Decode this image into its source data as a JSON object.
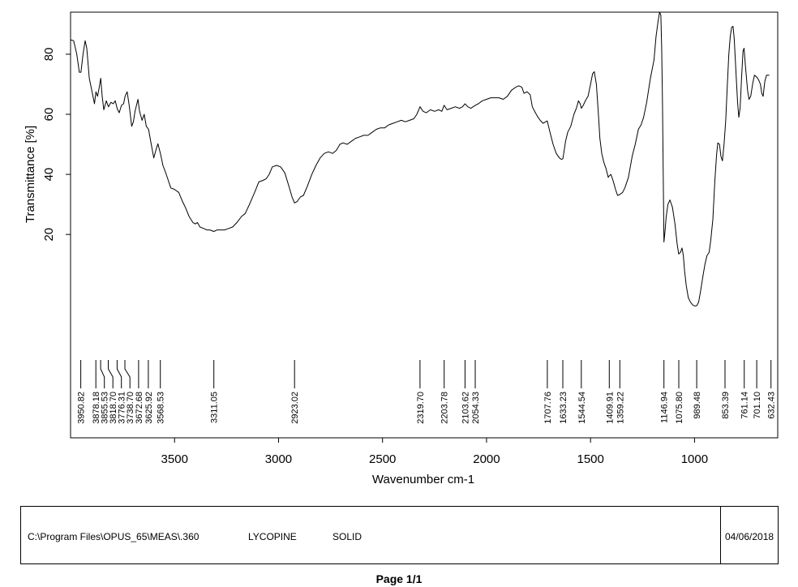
{
  "chart_data": {
    "type": "line",
    "xlabel": "Wavenumber cm-1",
    "ylabel": "Transmittance [%]",
    "xlim": [
      4000,
      600
    ],
    "ylim": [
      -18,
      94
    ],
    "x_ticks": [
      3500,
      3000,
      2500,
      2000,
      1500,
      1000
    ],
    "y_ticks": [
      20,
      40,
      60,
      80
    ],
    "grid": false,
    "series": [
      {
        "values": [
          [
            4000,
            84.8
          ],
          [
            3985,
            84.5
          ],
          [
            3970,
            80
          ],
          [
            3958,
            74
          ],
          [
            3950,
            74
          ],
          [
            3940,
            80
          ],
          [
            3930,
            84.5
          ],
          [
            3922,
            82
          ],
          [
            3910,
            72
          ],
          [
            3895,
            67
          ],
          [
            3885,
            63.5
          ],
          [
            3878,
            67.5
          ],
          [
            3870,
            66
          ],
          [
            3862,
            69
          ],
          [
            3855,
            72
          ],
          [
            3848,
            66
          ],
          [
            3840,
            61.5
          ],
          [
            3828,
            64.5
          ],
          [
            3818,
            62.5
          ],
          [
            3806,
            64
          ],
          [
            3795,
            63.5
          ],
          [
            3785,
            64.5
          ],
          [
            3776,
            62
          ],
          [
            3766,
            60.5
          ],
          [
            3755,
            63
          ],
          [
            3745,
            63.5
          ],
          [
            3738,
            66
          ],
          [
            3728,
            67.5
          ],
          [
            3718,
            63
          ],
          [
            3706,
            56
          ],
          [
            3698,
            57.5
          ],
          [
            3690,
            61
          ],
          [
            3676,
            65
          ],
          [
            3668,
            61
          ],
          [
            3656,
            58
          ],
          [
            3646,
            60
          ],
          [
            3636,
            56
          ],
          [
            3625,
            55
          ],
          [
            3612,
            50
          ],
          [
            3600,
            45.5
          ],
          [
            3590,
            48
          ],
          [
            3580,
            50.2
          ],
          [
            3568,
            47
          ],
          [
            3556,
            43
          ],
          [
            3545,
            41
          ],
          [
            3530,
            38
          ],
          [
            3518,
            35.5
          ],
          [
            3500,
            35
          ],
          [
            3480,
            34
          ],
          [
            3462,
            31
          ],
          [
            3448,
            29
          ],
          [
            3430,
            26
          ],
          [
            3412,
            24
          ],
          [
            3400,
            23.5
          ],
          [
            3390,
            24
          ],
          [
            3378,
            22.5
          ],
          [
            3360,
            22
          ],
          [
            3345,
            21.5
          ],
          [
            3330,
            21.5
          ],
          [
            3311,
            21
          ],
          [
            3295,
            21.5
          ],
          [
            3280,
            21.5
          ],
          [
            3260,
            21.5
          ],
          [
            3240,
            22
          ],
          [
            3220,
            22.5
          ],
          [
            3200,
            24
          ],
          [
            3178,
            26
          ],
          [
            3160,
            27
          ],
          [
            3140,
            30
          ],
          [
            3115,
            34
          ],
          [
            3095,
            37.5
          ],
          [
            3075,
            38
          ],
          [
            3060,
            38.5
          ],
          [
            3045,
            40
          ],
          [
            3030,
            42.5
          ],
          [
            3010,
            43
          ],
          [
            2990,
            42.5
          ],
          [
            2970,
            40.5
          ],
          [
            2950,
            36
          ],
          [
            2935,
            32.5
          ],
          [
            2923,
            30.5
          ],
          [
            2910,
            31
          ],
          [
            2895,
            32.5
          ],
          [
            2880,
            33
          ],
          [
            2862,
            36
          ],
          [
            2840,
            40
          ],
          [
            2820,
            43
          ],
          [
            2800,
            45.5
          ],
          [
            2780,
            47
          ],
          [
            2760,
            47.5
          ],
          [
            2740,
            47
          ],
          [
            2722,
            48
          ],
          [
            2705,
            50
          ],
          [
            2690,
            50.5
          ],
          [
            2670,
            50
          ],
          [
            2650,
            51
          ],
          [
            2630,
            52
          ],
          [
            2610,
            52.5
          ],
          [
            2590,
            53
          ],
          [
            2570,
            53
          ],
          [
            2550,
            54
          ],
          [
            2530,
            55
          ],
          [
            2510,
            55.5
          ],
          [
            2490,
            55.5
          ],
          [
            2470,
            56.5
          ],
          [
            2450,
            57
          ],
          [
            2430,
            57.5
          ],
          [
            2410,
            58
          ],
          [
            2390,
            57.5
          ],
          [
            2370,
            58
          ],
          [
            2350,
            58.5
          ],
          [
            2335,
            60
          ],
          [
            2320,
            62.5
          ],
          [
            2305,
            61
          ],
          [
            2290,
            60.5
          ],
          [
            2270,
            61.5
          ],
          [
            2250,
            61
          ],
          [
            2230,
            61.5
          ],
          [
            2215,
            61
          ],
          [
            2204,
            63
          ],
          [
            2190,
            61.5
          ],
          [
            2170,
            62
          ],
          [
            2150,
            62.5
          ],
          [
            2130,
            62
          ],
          [
            2115,
            62.5
          ],
          [
            2104,
            63.5
          ],
          [
            2090,
            62.5
          ],
          [
            2075,
            62
          ],
          [
            2065,
            62.5
          ],
          [
            2054,
            63
          ],
          [
            2040,
            63.5
          ],
          [
            2020,
            64.5
          ],
          [
            2000,
            65
          ],
          [
            1980,
            65.5
          ],
          [
            1960,
            65.5
          ],
          [
            1940,
            65.5
          ],
          [
            1920,
            65
          ],
          [
            1900,
            66
          ],
          [
            1880,
            68
          ],
          [
            1860,
            69
          ],
          [
            1845,
            69.5
          ],
          [
            1830,
            69
          ],
          [
            1820,
            67
          ],
          [
            1805,
            67.5
          ],
          [
            1790,
            66.5
          ],
          [
            1780,
            62.5
          ],
          [
            1765,
            60.5
          ],
          [
            1752,
            59
          ],
          [
            1742,
            58
          ],
          [
            1728,
            57
          ],
          [
            1715,
            57.5
          ],
          [
            1708,
            57.8
          ],
          [
            1695,
            54
          ],
          [
            1680,
            50
          ],
          [
            1665,
            47
          ],
          [
            1650,
            45.5
          ],
          [
            1640,
            45
          ],
          [
            1633,
            45.2
          ],
          [
            1620,
            51
          ],
          [
            1610,
            54
          ],
          [
            1595,
            56
          ],
          [
            1580,
            60
          ],
          [
            1568,
            62
          ],
          [
            1558,
            64.5
          ],
          [
            1550,
            63.5
          ],
          [
            1544,
            62
          ],
          [
            1535,
            63
          ],
          [
            1525,
            64.5
          ],
          [
            1512,
            66
          ],
          [
            1500,
            70
          ],
          [
            1490,
            73.5
          ],
          [
            1482,
            74.2
          ],
          [
            1472,
            70
          ],
          [
            1462,
            60
          ],
          [
            1455,
            52
          ],
          [
            1446,
            47
          ],
          [
            1436,
            44
          ],
          [
            1426,
            42
          ],
          [
            1415,
            39
          ],
          [
            1410,
            39.5
          ],
          [
            1402,
            40
          ],
          [
            1392,
            38
          ],
          [
            1380,
            35
          ],
          [
            1370,
            33
          ],
          [
            1359,
            33.3
          ],
          [
            1346,
            34
          ],
          [
            1335,
            35.5
          ],
          [
            1318,
            39
          ],
          [
            1300,
            46
          ],
          [
            1285,
            50
          ],
          [
            1270,
            55
          ],
          [
            1257,
            56.5
          ],
          [
            1245,
            59
          ],
          [
            1230,
            64
          ],
          [
            1212,
            72
          ],
          [
            1195,
            78
          ],
          [
            1185,
            86
          ],
          [
            1175,
            91
          ],
          [
            1168,
            94
          ],
          [
            1162,
            93
          ],
          [
            1158,
            82
          ],
          [
            1154,
            64
          ],
          [
            1150,
            38
          ],
          [
            1147,
            17.5
          ],
          [
            1142,
            21
          ],
          [
            1136,
            26
          ],
          [
            1128,
            30
          ],
          [
            1118,
            31.5
          ],
          [
            1106,
            29
          ],
          [
            1094,
            23.5
          ],
          [
            1084,
            17
          ],
          [
            1076,
            13.5
          ],
          [
            1068,
            14
          ],
          [
            1060,
            15.5
          ],
          [
            1054,
            13
          ],
          [
            1048,
            8
          ],
          [
            1040,
            3
          ],
          [
            1030,
            -1
          ],
          [
            1020,
            -2.5
          ],
          [
            1008,
            -3.5
          ],
          [
            998,
            -3.8
          ],
          [
            989,
            -3.7
          ],
          [
            980,
            -2.5
          ],
          [
            970,
            1.5
          ],
          [
            960,
            6
          ],
          [
            950,
            10
          ],
          [
            940,
            13
          ],
          [
            930,
            14
          ],
          [
            922,
            18
          ],
          [
            912,
            25
          ],
          [
            902,
            38
          ],
          [
            894,
            46.5
          ],
          [
            888,
            50.5
          ],
          [
            880,
            50
          ],
          [
            873,
            46
          ],
          [
            866,
            44.5
          ],
          [
            858,
            50
          ],
          [
            850,
            58
          ],
          [
            842,
            70
          ],
          [
            835,
            80
          ],
          [
            828,
            86
          ],
          [
            821,
            89
          ],
          [
            815,
            89.3
          ],
          [
            809,
            85
          ],
          [
            800,
            73
          ],
          [
            793,
            64
          ],
          [
            787,
            59
          ],
          [
            781,
            62
          ],
          [
            774,
            72
          ],
          [
            767,
            81
          ],
          [
            762,
            82
          ],
          [
            755,
            76
          ],
          [
            745,
            68
          ],
          [
            738,
            65
          ],
          [
            730,
            66
          ],
          [
            721,
            70
          ],
          [
            712,
            73
          ],
          [
            702,
            72.5
          ],
          [
            692,
            71.5
          ],
          [
            683,
            70
          ],
          [
            677,
            67
          ],
          [
            670,
            66
          ],
          [
            662,
            71
          ],
          [
            654,
            73
          ],
          [
            645,
            73
          ],
          [
            640,
            73
          ]
        ]
      }
    ],
    "peak_labels": [
      "3950.82",
      "3878.18",
      "3855.53",
      "3818.70",
      "3776.31",
      "3738.70",
      "3672.68",
      "3625.92",
      "3568.53",
      "3311.05",
      "2923.02",
      "2319.70",
      "2203.78",
      "2103.62",
      "2054.33",
      "1707.76",
      "1633.23",
      "1544.54",
      "1409.91",
      "1359.22",
      "1146.94",
      "1075.80",
      "989.48",
      "853.39",
      "761.14",
      "701.10",
      "632.43"
    ],
    "peak_marks": [
      3950.82,
      3878.18,
      3855.53,
      3818.7,
      3776.31,
      3738.7,
      3672.68,
      3625.92,
      3568.53,
      3311.05,
      2923.02,
      2319.7,
      2203.78,
      2103.62,
      2054.33,
      1707.76,
      1633.23,
      1544.54,
      1409.91,
      1359.22,
      1146.94,
      1075.8,
      989.48,
      853.39,
      761.14,
      701.1,
      632.43
    ]
  },
  "footer": {
    "path": "C:\\Program Files\\OPUS_65\\MEAS\\.360",
    "sample": "LYCOPINE",
    "form": "SOLID",
    "date": "04/06/2018"
  },
  "page_label": "Page 1/1"
}
